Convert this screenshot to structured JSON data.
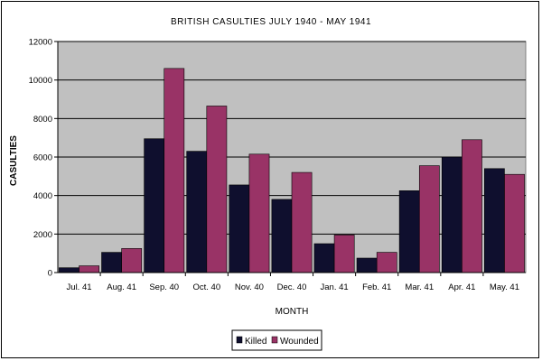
{
  "chart_data": {
    "type": "bar",
    "title": "BRITISH CASULTIES JULY 1940 - MAY 1941",
    "xlabel": "MONTH",
    "ylabel": "CASULTIES",
    "ylim": [
      0,
      12000
    ],
    "yticks": [
      "0",
      "2000",
      "4000",
      "6000",
      "8000",
      "10000",
      "12000"
    ],
    "categories": [
      "Jul. 41",
      "Aug. 41",
      "Sep. 40",
      "Oct. 40",
      "Nov. 40",
      "Dec. 40",
      "Jan. 41",
      "Feb. 41",
      "Mar. 41",
      "Apr. 41",
      "May. 41"
    ],
    "series": [
      {
        "name": "Killed",
        "color": "#0f0f2e",
        "values": [
          250,
          1050,
          6950,
          6300,
          4550,
          3800,
          1500,
          750,
          4250,
          6000,
          5400
        ]
      },
      {
        "name": "Wounded",
        "color": "#993366",
        "values": [
          350,
          1250,
          10600,
          8650,
          6150,
          5200,
          1950,
          1050,
          5550,
          6900,
          5100
        ]
      }
    ],
    "grid": true,
    "legend_position": "bottom"
  }
}
